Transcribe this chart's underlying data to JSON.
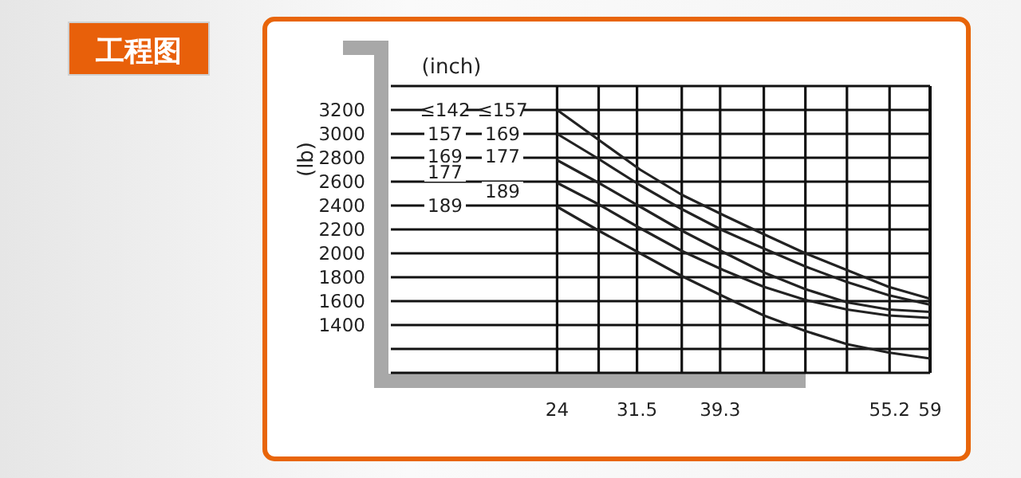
{
  "chart_data": {
    "type": "line",
    "title": "工程图",
    "xlabel": "(inch)",
    "ylabel": "(lb)",
    "x": [
      24,
      27.9,
      31.8,
      35.7,
      39.6,
      43.4,
      47.3,
      51.2,
      55.1,
      59
    ],
    "series": [
      {
        "color": "#222222",
        "values": [
          3200,
          2950,
          2700,
          2490,
          2320,
          2160,
          2000,
          1860,
          1720,
          1620
        ]
      },
      {
        "color": "#222222",
        "values": [
          3000,
          2790,
          2570,
          2370,
          2190,
          2040,
          1890,
          1760,
          1650,
          1570
        ]
      },
      {
        "color": "#222222",
        "values": [
          2780,
          2590,
          2390,
          2190,
          2010,
          1840,
          1700,
          1590,
          1530,
          1510
        ]
      },
      {
        "color": "#222222",
        "values": [
          2590,
          2410,
          2210,
          2020,
          1860,
          1720,
          1610,
          1530,
          1480,
          1460
        ]
      },
      {
        "color": "#222222",
        "values": [
          2390,
          2190,
          2000,
          1810,
          1640,
          1480,
          1350,
          1240,
          1170,
          1120
        ]
      }
    ],
    "xlim": [
      8.4,
      59
    ],
    "xticks": [
      24,
      {
        "value": 27.9,
        "label": null
      },
      31.5,
      {
        "value": 35.7,
        "label": null
      },
      39.3,
      {
        "value": 43.4,
        "label": null
      },
      {
        "value": 47.3,
        "label": null
      },
      {
        "value": 51.2,
        "label": null
      },
      55.2,
      59
    ],
    "ylim": [
      1000,
      3400
    ],
    "yticks": [
      {
        "value": 1000,
        "label": null
      },
      {
        "value": 1200,
        "label": null
      },
      1400,
      1600,
      1800,
      2000,
      2200,
      2400,
      2600,
      2800,
      3000,
      3200,
      {
        "value": 3400,
        "label": null
      }
    ],
    "annotations": [
      "≤142",
      "≤157",
      "157",
      "169",
      "169",
      "177",
      "177",
      "189",
      "189"
    ],
    "grid": true,
    "marker": "none",
    "line_style": "solid"
  }
}
